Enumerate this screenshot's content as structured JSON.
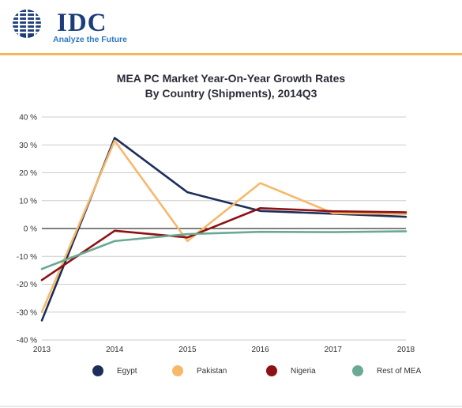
{
  "brand": {
    "logo_text": "IDC",
    "tagline": "Analyze the Future",
    "logo_blue": "#1d3d7a",
    "tagline_blue": "#2d78c6",
    "accent_orange": "#f5b35c"
  },
  "chart_data": {
    "type": "line",
    "title_line1": "MEA PC Market Year-On-Year Growth Rates",
    "title_line2": "By Country (Shipments), 2014Q3",
    "x": [
      "2013",
      "2014",
      "2015",
      "2016",
      "2017",
      "2018"
    ],
    "y_ticks": [
      "40 %",
      "30 %",
      "20 %",
      "10 %",
      "0 %",
      "-10 %",
      "-20 %",
      "-30 %",
      "-40 %"
    ],
    "ylim": [
      -40,
      40
    ],
    "y_tick_values": [
      40,
      30,
      20,
      10,
      0,
      -10,
      -20,
      -30,
      -40
    ],
    "grid": true,
    "legend_position": "bottom",
    "series": [
      {
        "name": "Egypt",
        "color": "#1c2e5a",
        "values": [
          -33,
          32.5,
          13,
          6.3,
          5.3,
          4.2
        ]
      },
      {
        "name": "Pakistan",
        "color": "#f7b86a",
        "values": [
          -30,
          31.5,
          -4.5,
          16.3,
          5.5,
          5.2
        ]
      },
      {
        "name": "Nigeria",
        "color": "#8e1114",
        "values": [
          -18.5,
          -0.8,
          -3.2,
          7.3,
          6.2,
          5.8
        ]
      },
      {
        "name": "Rest of MEA",
        "color": "#6aaa92",
        "values": [
          -14.5,
          -4.5,
          -2,
          -1.2,
          -1.3,
          -1
        ]
      }
    ]
  }
}
